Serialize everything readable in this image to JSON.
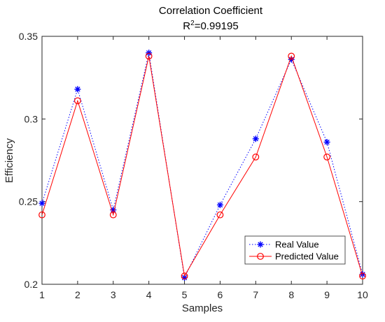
{
  "chart_data": {
    "type": "line",
    "title": "Correlation Coefficient",
    "subtitle_prefix": "R",
    "subtitle_superscript": "2",
    "subtitle_value": "=0.99195",
    "xlabel": "Samples",
    "ylabel": "Efficiency",
    "xlim": [
      1,
      10
    ],
    "ylim": [
      0.2,
      0.35
    ],
    "x": [
      1,
      2,
      3,
      4,
      5,
      6,
      7,
      8,
      9,
      10
    ],
    "x_ticks": [
      "1",
      "2",
      "3",
      "4",
      "5",
      "6",
      "7",
      "8",
      "9",
      "10"
    ],
    "y_ticks": [
      0.2,
      0.25,
      0.3,
      0.35
    ],
    "y_tick_labels": [
      "0.2",
      "0.25",
      "0.3",
      "0.35"
    ],
    "grid": false,
    "legend_position": "bottom-right",
    "series": [
      {
        "name": "Real Value",
        "values": [
          0.249,
          0.318,
          0.245,
          0.34,
          0.204,
          0.248,
          0.288,
          0.336,
          0.286,
          0.206
        ],
        "color": "#0000ff",
        "line_style": "dotted",
        "marker": "asterisk"
      },
      {
        "name": "Predicted Value",
        "values": [
          0.242,
          0.311,
          0.242,
          0.338,
          0.205,
          0.242,
          0.277,
          0.338,
          0.277,
          0.205
        ],
        "color": "#ff0000",
        "line_style": "solid",
        "marker": "circle"
      }
    ]
  }
}
